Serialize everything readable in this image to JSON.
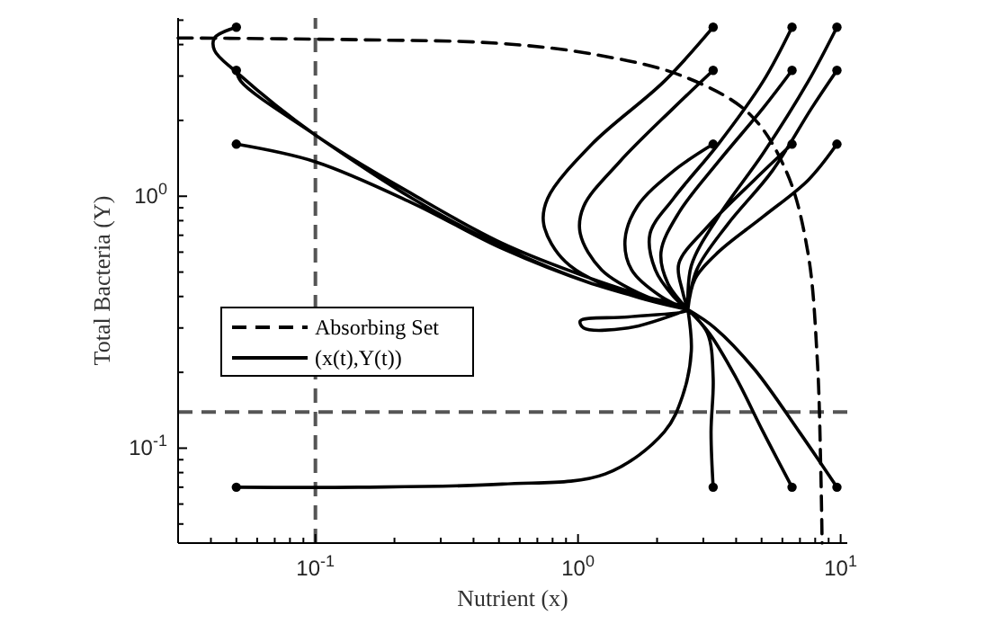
{
  "chart_data": {
    "type": "line",
    "xlabel": "Nutrient (x)",
    "ylabel": "Total Bacteria (Y)",
    "log": "xy",
    "grid": false,
    "legend": "left",
    "marker": "none",
    "xlim": [
      0.03,
      10.6
    ],
    "ylim": [
      0.042,
      5.1
    ],
    "xticks": [
      {
        "value": 0.04,
        "label": null
      },
      {
        "value": 0.05,
        "label": null
      },
      {
        "value": 0.06,
        "label": null
      },
      {
        "value": 0.07,
        "label": null
      },
      {
        "value": 0.08,
        "label": null
      },
      {
        "value": 0.09,
        "label": null
      },
      {
        "value": 0.1,
        "label": "10$^{-1}$"
      },
      {
        "value": 0.2,
        "label": null
      },
      {
        "value": 0.3,
        "label": null
      },
      {
        "value": 0.4,
        "label": null
      },
      {
        "value": 0.5,
        "label": null
      },
      {
        "value": 0.6,
        "label": null
      },
      {
        "value": 0.7,
        "label": null
      },
      {
        "value": 0.8,
        "label": null
      },
      {
        "value": 0.9,
        "label": null
      },
      {
        "value": 1,
        "label": "10$^{0}$"
      },
      {
        "value": 2,
        "label": null
      },
      {
        "value": 3,
        "label": null
      },
      {
        "value": 4,
        "label": null
      },
      {
        "value": 5,
        "label": null
      },
      {
        "value": 6,
        "label": null
      },
      {
        "value": 7,
        "label": null
      },
      {
        "value": 8,
        "label": null
      },
      {
        "value": 9,
        "label": null
      },
      {
        "value": 10,
        "label": "10$^{1}$"
      }
    ],
    "yticks": [
      {
        "value": 0.05,
        "label": null
      },
      {
        "value": 0.06,
        "label": null
      },
      {
        "value": 0.07,
        "label": null
      },
      {
        "value": 0.08,
        "label": null
      },
      {
        "value": 0.09,
        "label": null
      },
      {
        "value": 0.1,
        "label": "10$^{-1}$"
      },
      {
        "value": 0.2,
        "label": null
      },
      {
        "value": 0.3,
        "label": null
      },
      {
        "value": 0.4,
        "label": null
      },
      {
        "value": 0.5,
        "label": null
      },
      {
        "value": 0.6,
        "label": null
      },
      {
        "value": 0.7,
        "label": null
      },
      {
        "value": 0.8,
        "label": null
      },
      {
        "value": 0.9,
        "label": null
      },
      {
        "value": 1,
        "label": "10$^{0}$"
      },
      {
        "value": 2,
        "label": null
      },
      {
        "value": 3,
        "label": null
      },
      {
        "value": 4,
        "label": null
      },
      {
        "value": 5,
        "label": null
      }
    ],
    "ref_lines": [
      {
        "axis": "x",
        "value": 0.1,
        "color": "#555555",
        "line_style": "dashed"
      },
      {
        "axis": "y",
        "value": 0.139,
        "color": "#555555",
        "line_style": "dashed"
      }
    ],
    "series": [
      {
        "name": "Absorbing Set",
        "line_style": "dashed",
        "color": "#000000",
        "x": [
          0.03,
          0.146,
          0.49,
          1.13,
          2.5,
          4.48,
          6.24,
          7.5,
          8.15,
          8.4,
          8.5
        ],
        "values": [
          4.25,
          4.18,
          4.05,
          3.67,
          3.0,
          2.13,
          1.24,
          0.6,
          0.224,
          0.083,
          0.042
        ]
      },
      {
        "name": "(x(t),Y(t))",
        "line_style": "solid",
        "color": "#000000",
        "x": [
          3.27,
          2.13,
          1.13,
          0.766,
          0.741,
          0.895,
          1.44,
          2.62,
          null,
          3.27,
          2.31,
          1.44,
          1.05,
          1.02,
          1.23,
          1.82,
          2.62,
          null,
          3.27,
          2.31,
          1.68,
          1.51,
          1.6,
          2.07,
          2.62,
          null,
          6.53,
          5.07,
          3.42,
          2.31,
          1.88,
          1.97,
          2.31,
          2.62,
          null,
          6.53,
          5.07,
          3.42,
          2.42,
          2.07,
          2.2,
          2.62,
          null,
          6.53,
          4.69,
          3.16,
          2.42,
          2.5,
          2.62,
          null,
          9.68,
          7.53,
          5.07,
          3.42,
          2.7,
          2.62,
          null,
          9.68,
          7.76,
          5.49,
          3.7,
          2.83,
          2.62,
          null,
          9.68,
          7.53,
          5.07,
          3.42,
          2.79,
          2.62,
          null,
          3.27,
          3.21,
          3.27,
          3.11,
          2.62,
          null,
          6.53,
          5.07,
          4.0,
          3.16,
          2.62,
          null,
          9.68,
          6.96,
          4.69,
          3.32,
          2.62,
          null,
          0.05,
          0.0413,
          0.0413,
          0.05,
          0.1,
          0.234,
          0.515,
          1.13,
          2.62,
          null,
          0.05,
          0.052,
          0.1,
          0.234,
          0.515,
          1.13,
          2.62,
          null,
          0.05,
          0.1,
          0.234,
          0.515,
          1.13,
          2.62,
          1.55,
          1.02,
          1.05,
          1.55,
          2.62,
          null,
          0.05,
          0.146,
          0.515,
          1.27,
          2.13,
          2.5,
          2.7,
          2.62
        ],
        "values": [
          4.69,
          2.86,
          1.61,
          0.98,
          0.77,
          0.55,
          0.42,
          0.355,
          null,
          3.16,
          2.24,
          1.37,
          0.91,
          0.71,
          0.51,
          0.4,
          0.355,
          null,
          1.61,
          1.26,
          0.91,
          0.67,
          0.51,
          0.4,
          0.355,
          null,
          4.69,
          2.86,
          1.61,
          0.98,
          0.71,
          0.51,
          0.4,
          0.355,
          null,
          3.16,
          2.24,
          1.37,
          0.86,
          0.6,
          0.45,
          0.355,
          null,
          1.61,
          1.16,
          0.77,
          0.54,
          0.42,
          0.355,
          null,
          4.69,
          2.86,
          1.48,
          0.83,
          0.53,
          0.355,
          null,
          3.16,
          2.24,
          1.26,
          0.77,
          0.51,
          0.355,
          null,
          1.61,
          1.16,
          0.83,
          0.6,
          0.47,
          0.355,
          null,
          0.07,
          0.116,
          0.19,
          0.286,
          0.355,
          null,
          0.07,
          0.116,
          0.19,
          0.286,
          0.355,
          null,
          0.07,
          0.116,
          0.206,
          0.3,
          0.355,
          null,
          4.69,
          4.25,
          3.79,
          3.11,
          1.75,
          1.02,
          0.65,
          0.47,
          0.355,
          null,
          3.16,
          2.86,
          1.75,
          0.98,
          0.63,
          0.45,
          0.355,
          null,
          1.61,
          1.37,
          0.94,
          0.62,
          0.45,
          0.355,
          0.332,
          0.32,
          0.3,
          0.3,
          0.355,
          null,
          0.07,
          0.07,
          0.072,
          0.079,
          0.116,
          0.161,
          0.243,
          0.355
        ]
      },
      {
        "type": "scatter",
        "marker": "circle",
        "color": "#000000",
        "x": [
          0.05,
          0.05,
          0.05,
          0.05,
          3.27,
          3.27,
          3.27,
          3.27,
          6.53,
          6.53,
          6.53,
          6.53,
          9.68,
          9.68,
          9.68,
          9.68
        ],
        "values": [
          4.69,
          3.16,
          1.61,
          0.07,
          4.69,
          3.16,
          1.61,
          0.07,
          4.69,
          3.16,
          1.61,
          0.07,
          4.69,
          3.16,
          1.61,
          0.07
        ]
      }
    ]
  }
}
